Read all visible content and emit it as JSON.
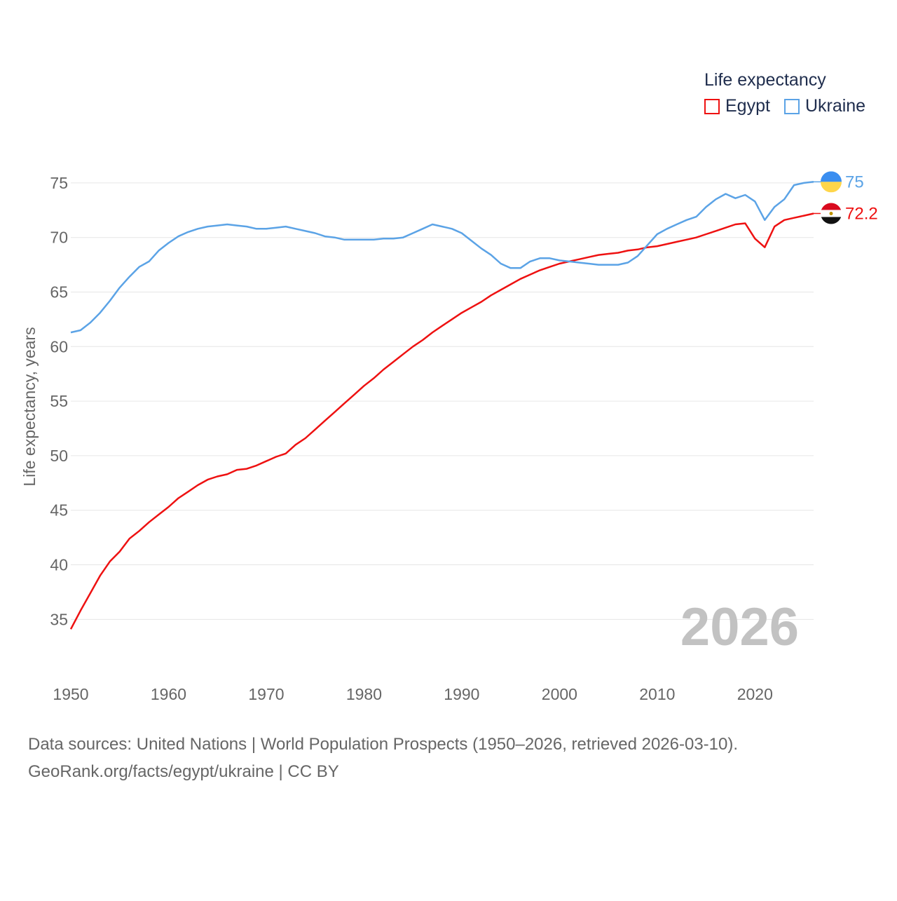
{
  "chart_data": {
    "type": "line",
    "title": "Life expectancy",
    "ylabel": "Life expectancy, years",
    "xlabel": "",
    "xlim": [
      1950,
      2026
    ],
    "ylim": [
      32,
      76.6
    ],
    "yticks": [
      35,
      40,
      45,
      50,
      55,
      60,
      65,
      70,
      75
    ],
    "xticks": [
      1950,
      1960,
      1970,
      1980,
      1990,
      2000,
      2010,
      2020
    ],
    "grid": true,
    "legend_position": "top-right",
    "current_year_label": "2026",
    "x": [
      1950,
      1951,
      1952,
      1953,
      1954,
      1955,
      1956,
      1957,
      1958,
      1959,
      1960,
      1961,
      1962,
      1963,
      1964,
      1965,
      1966,
      1967,
      1968,
      1969,
      1970,
      1971,
      1972,
      1973,
      1974,
      1975,
      1976,
      1977,
      1978,
      1979,
      1980,
      1981,
      1982,
      1983,
      1984,
      1985,
      1986,
      1987,
      1988,
      1989,
      1990,
      1991,
      1992,
      1993,
      1994,
      1995,
      1996,
      1997,
      1998,
      1999,
      2000,
      2001,
      2002,
      2003,
      2004,
      2005,
      2006,
      2007,
      2008,
      2009,
      2010,
      2011,
      2012,
      2013,
      2014,
      2015,
      2016,
      2017,
      2018,
      2019,
      2020,
      2021,
      2022,
      2023,
      2024,
      2025,
      2026
    ],
    "series": [
      {
        "name": "Egypt",
        "color": "#ee1111",
        "end_label": "72.2",
        "flag_icon": "egypt-flag-icon",
        "values": [
          34.1,
          35.8,
          37.4,
          39.0,
          40.3,
          41.2,
          42.4,
          43.1,
          43.9,
          44.6,
          45.3,
          46.1,
          46.7,
          47.3,
          47.8,
          48.1,
          48.3,
          48.7,
          48.8,
          49.1,
          49.5,
          49.9,
          50.2,
          51.0,
          51.6,
          52.4,
          53.2,
          54.0,
          54.8,
          55.6,
          56.4,
          57.1,
          57.9,
          58.6,
          59.3,
          60.0,
          60.6,
          61.3,
          61.9,
          62.5,
          63.1,
          63.6,
          64.1,
          64.7,
          65.2,
          65.7,
          66.2,
          66.6,
          67.0,
          67.3,
          67.6,
          67.8,
          68.0,
          68.2,
          68.4,
          68.5,
          68.6,
          68.8,
          68.9,
          69.1,
          69.2,
          69.4,
          69.6,
          69.8,
          70.0,
          70.3,
          70.6,
          70.9,
          71.2,
          71.3,
          69.9,
          69.1,
          71.0,
          71.6,
          71.8,
          72.0,
          72.2
        ]
      },
      {
        "name": "Ukraine",
        "color": "#5ba3e6",
        "end_label": "75",
        "flag_icon": "ukraine-flag-icon",
        "values": [
          61.3,
          61.5,
          62.2,
          63.1,
          64.2,
          65.4,
          66.4,
          67.3,
          67.8,
          68.8,
          69.5,
          70.1,
          70.5,
          70.8,
          71.0,
          71.1,
          71.2,
          71.1,
          71.0,
          70.8,
          70.8,
          70.9,
          71.0,
          70.8,
          70.6,
          70.4,
          70.1,
          70.0,
          69.8,
          69.8,
          69.8,
          69.8,
          69.9,
          69.9,
          70.0,
          70.4,
          70.8,
          71.2,
          71.0,
          70.8,
          70.4,
          69.7,
          69.0,
          68.4,
          67.6,
          67.2,
          67.2,
          67.8,
          68.1,
          68.1,
          67.9,
          67.8,
          67.7,
          67.6,
          67.5,
          67.5,
          67.5,
          67.7,
          68.3,
          69.3,
          70.3,
          70.8,
          71.2,
          71.6,
          71.9,
          72.8,
          73.5,
          74.0,
          73.6,
          73.9,
          73.3,
          71.6,
          72.8,
          73.5,
          74.8,
          75.0,
          75.1
        ]
      }
    ]
  },
  "legend": {
    "title": "Life expectancy",
    "items": [
      {
        "label": "Egypt",
        "color": "#ee1111"
      },
      {
        "label": "Ukraine",
        "color": "#5ba3e6"
      }
    ]
  },
  "source": {
    "line1": "Data sources: United Nations | World Population Prospects (1950–2026, retrieved 2026-03-10).",
    "line2": "GeoRank.org/facts/egypt/ukraine | CC BY"
  }
}
